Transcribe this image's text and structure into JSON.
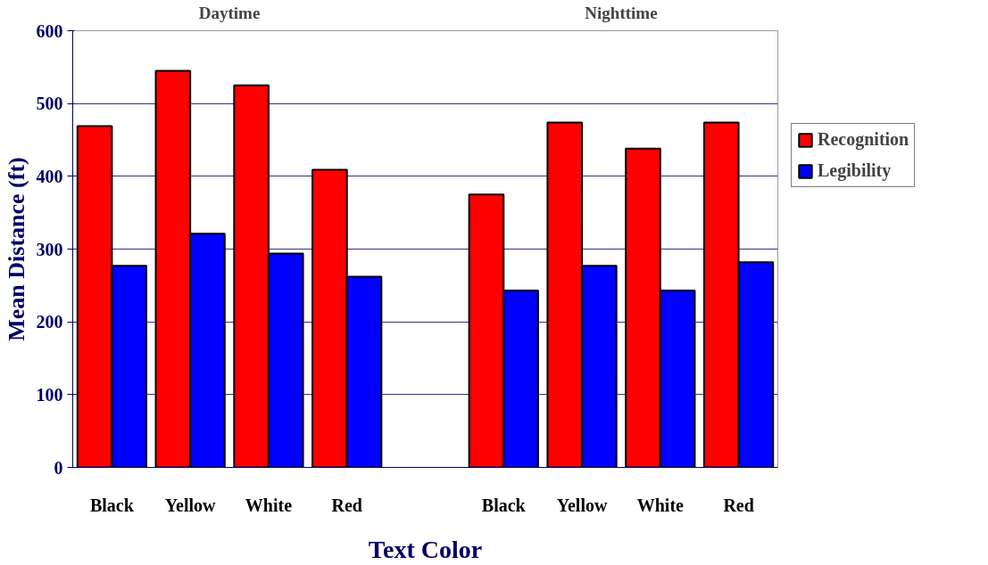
{
  "chart_data": {
    "type": "bar",
    "xlabel": "Text Color",
    "ylabel": "Mean Distance (ft)",
    "categories": [
      "Black",
      "Yellow",
      "White",
      "Red",
      null,
      "Black",
      "Yellow",
      "White",
      "Red"
    ],
    "series": [
      {
        "name": "Recognition",
        "color": "#ff0000",
        "values": [
          469,
          545,
          525,
          409,
          null,
          375,
          474,
          438,
          474
        ]
      },
      {
        "name": "Legibility",
        "color": "#0000ff",
        "values": [
          277,
          321,
          294,
          262,
          null,
          243,
          277,
          243,
          282
        ]
      }
    ],
    "annotations": [
      "Daytime",
      "Nighttime"
    ],
    "ylim": [
      0,
      600
    ],
    "yticks": [
      0,
      100,
      200,
      300,
      400,
      500,
      600
    ],
    "grid": "y",
    "legend": "right"
  }
}
